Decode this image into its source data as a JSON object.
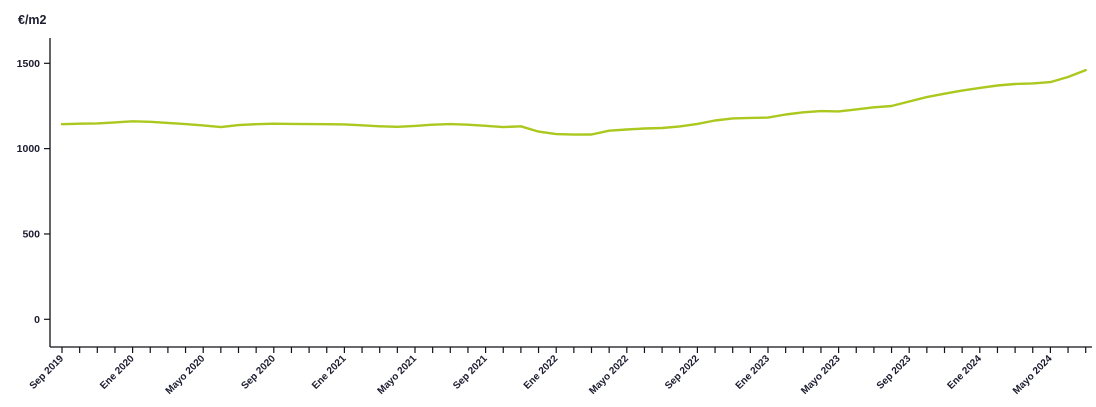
{
  "chart_data": {
    "type": "line",
    "title": "",
    "ylabel": "€/m2",
    "xlabel": "",
    "grid": false,
    "legend": "none",
    "ylim": [
      0,
      1650
    ],
    "y_ticks": [
      0,
      500,
      1000,
      1500
    ],
    "x_tick_count": 59,
    "x_label_every": 4,
    "x_tick_labels": [
      "Sep 2019",
      "Ene 2020",
      "Mayo 2020",
      "Sep 2020",
      "Ene 2021",
      "Mayo 2021",
      "Sep 2021",
      "Ene 2022",
      "Mayo 2022",
      "Sep 2022",
      "Ene 2023",
      "Mayo 2023",
      "Sep 2023",
      "Ene 2024",
      "Mayo 2024"
    ],
    "series": [
      {
        "color": "#aac81e",
        "values": [
          1143,
          1146,
          1148,
          1154,
          1160,
          1157,
          1151,
          1144,
          1136,
          1126,
          1138,
          1143,
          1146,
          1145,
          1144,
          1143,
          1142,
          1137,
          1131,
          1128,
          1133,
          1140,
          1144,
          1140,
          1134,
          1126,
          1131,
          1100,
          1085,
          1082,
          1083,
          1105,
          1112,
          1118,
          1121,
          1130,
          1145,
          1165,
          1177,
          1180,
          1182,
          1200,
          1213,
          1220,
          1218,
          1230,
          1242,
          1250,
          1276,
          1302,
          1322,
          1340,
          1356,
          1370,
          1379,
          1382,
          1390,
          1420,
          1460
        ]
      }
    ],
    "axis_color": "#111118",
    "text_color": "#1c1c30"
  }
}
